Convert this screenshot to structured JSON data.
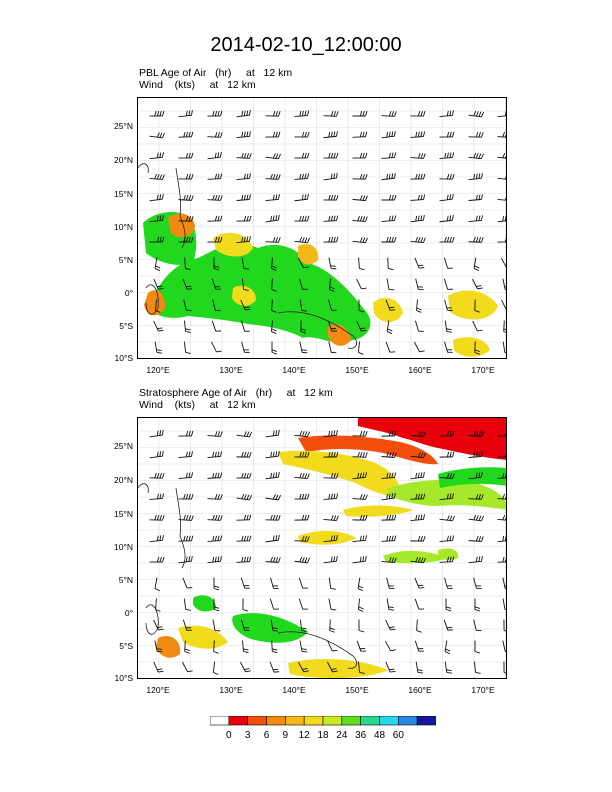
{
  "title": "2014-02-10_12:00:00",
  "panels": [
    {
      "id": "pbl",
      "label_line1": "PBL Age of Air   (hr)     at   12 km",
      "label_line2": "Wind    (kts)     at   12 km"
    },
    {
      "id": "strat",
      "label_line1": "Stratosphere Age of Air   (hr)     at   12 km",
      "label_line2": "Wind    (kts)     at   12 km"
    }
  ],
  "lat_labels": [
    "25°N",
    "20°N",
    "15°N",
    "10°N",
    "5°N",
    "0°",
    "5°S",
    "10°S"
  ],
  "lon_labels": [
    "120°E",
    "130°E",
    "140°E",
    "150°E",
    "160°E",
    "170°E"
  ],
  "colorbar": {
    "labels": [
      "0",
      "3",
      "6",
      "9",
      "12",
      "18",
      "24",
      "36",
      "48",
      "60"
    ],
    "colors": [
      "#ffffff",
      "#e8000b",
      "#f24f0f",
      "#f08a12",
      "#f5b81a",
      "#f2da1c",
      "#c8ea22",
      "#5ede20",
      "#27d88e",
      "#23d8e8",
      "#2a86e0",
      "#17179e"
    ]
  },
  "colors": {
    "high_age": "#e8000b",
    "orange": "#f08a12",
    "yellow": "#f2da1c",
    "green": "#22d81e",
    "light_green": "#a8e82a"
  }
}
